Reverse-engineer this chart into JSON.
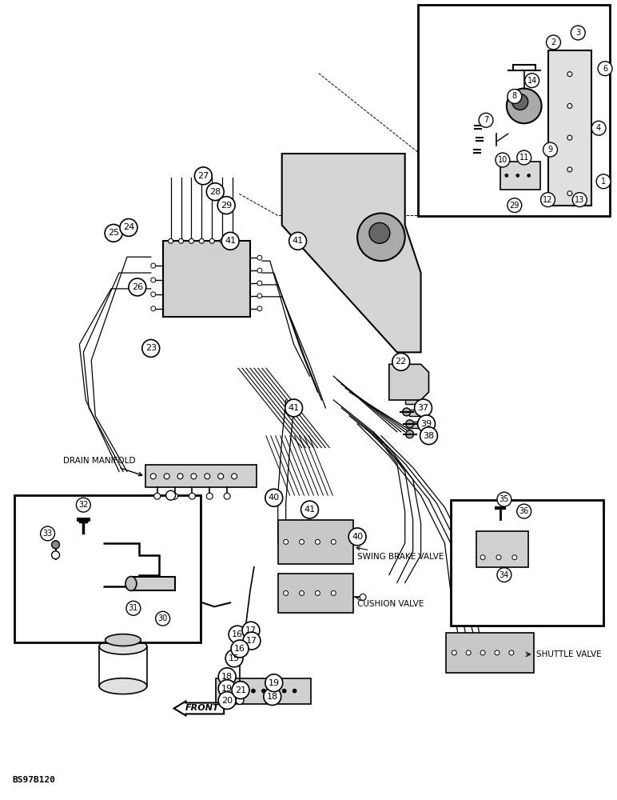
{
  "background_color": "#ffffff",
  "image_code": "BS97B120",
  "labels": {
    "drain_manifold": "DRAIN MANIFOLD",
    "swing_brake_valve": "SWING BRAKE VALVE",
    "cushion_valve": "CUSHION VALVE",
    "shuttle_valve": "SHUTTLE VALVE",
    "front": "FRONT"
  }
}
